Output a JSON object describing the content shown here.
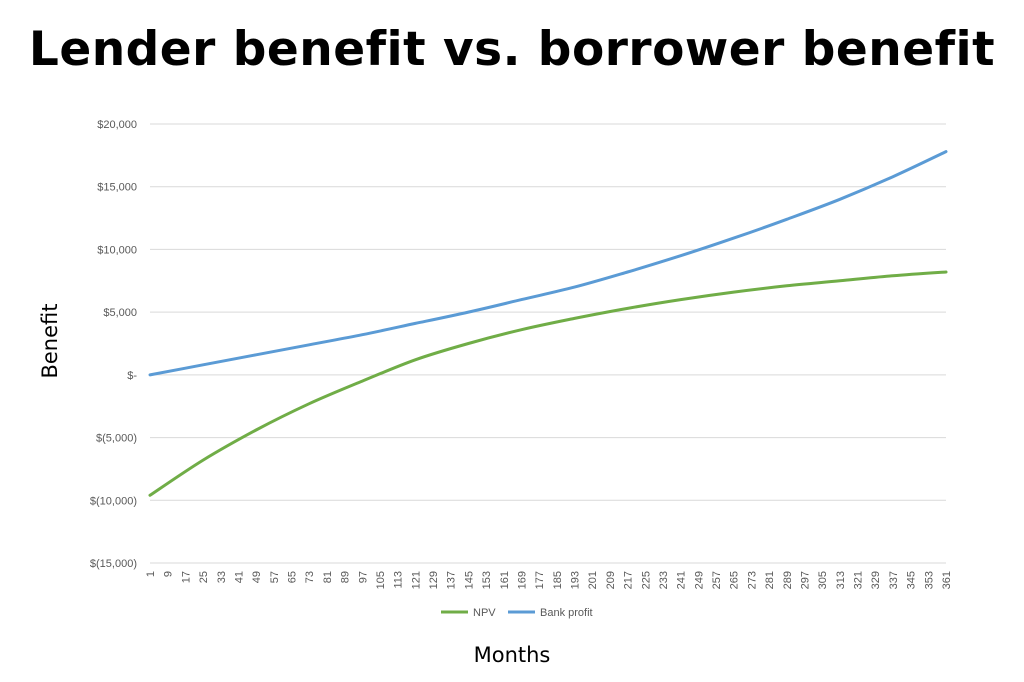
{
  "chart_data": {
    "type": "line",
    "title": "Lender benefit vs. borrower benefit",
    "xlabel": "Months",
    "ylabel": "Benefit",
    "x_ticks": [
      "1",
      "9",
      "17",
      "25",
      "33",
      "41",
      "49",
      "57",
      "65",
      "73",
      "81",
      "89",
      "97",
      "105",
      "113",
      "121",
      "129",
      "137",
      "145",
      "153",
      "161",
      "169",
      "177",
      "185",
      "193",
      "201",
      "209",
      "217",
      "225",
      "233",
      "241",
      "249",
      "257",
      "265",
      "273",
      "281",
      "289",
      "297",
      "305",
      "313",
      "321",
      "329",
      "337",
      "345",
      "353",
      "361"
    ],
    "xlim": [
      1,
      361
    ],
    "ylim": [
      -15000,
      20000
    ],
    "y_ticks": [
      {
        "value": 20000,
        "label": "$20,000"
      },
      {
        "value": 15000,
        "label": "$15,000"
      },
      {
        "value": 10000,
        "label": "$10,000"
      },
      {
        "value": 5000,
        "label": "$5,000"
      },
      {
        "value": 0,
        "label": "$-"
      },
      {
        "value": -5000,
        "label": "$(5,000)"
      },
      {
        "value": -10000,
        "label": "$(10,000)"
      },
      {
        "value": -15000,
        "label": "$(15,000)"
      }
    ],
    "grid": true,
    "legend_position": "bottom",
    "series": [
      {
        "name": "NPV",
        "color": "#70ad47",
        "x": [
          1,
          25,
          49,
          73,
          97,
          121,
          145,
          169,
          193,
          217,
          241,
          265,
          289,
          313,
          337,
          361
        ],
        "values": [
          -9600,
          -6800,
          -4400,
          -2300,
          -500,
          1200,
          2500,
          3600,
          4500,
          5300,
          6000,
          6600,
          7100,
          7500,
          7900,
          8200
        ]
      },
      {
        "name": "Bank profit",
        "color": "#5b9bd5",
        "x": [
          1,
          25,
          49,
          73,
          97,
          121,
          145,
          169,
          193,
          217,
          241,
          265,
          289,
          313,
          337,
          361
        ],
        "values": [
          0,
          800,
          1600,
          2400,
          3200,
          4100,
          5000,
          6000,
          7000,
          8200,
          9500,
          10900,
          12400,
          14000,
          15800,
          17800
        ]
      }
    ]
  }
}
